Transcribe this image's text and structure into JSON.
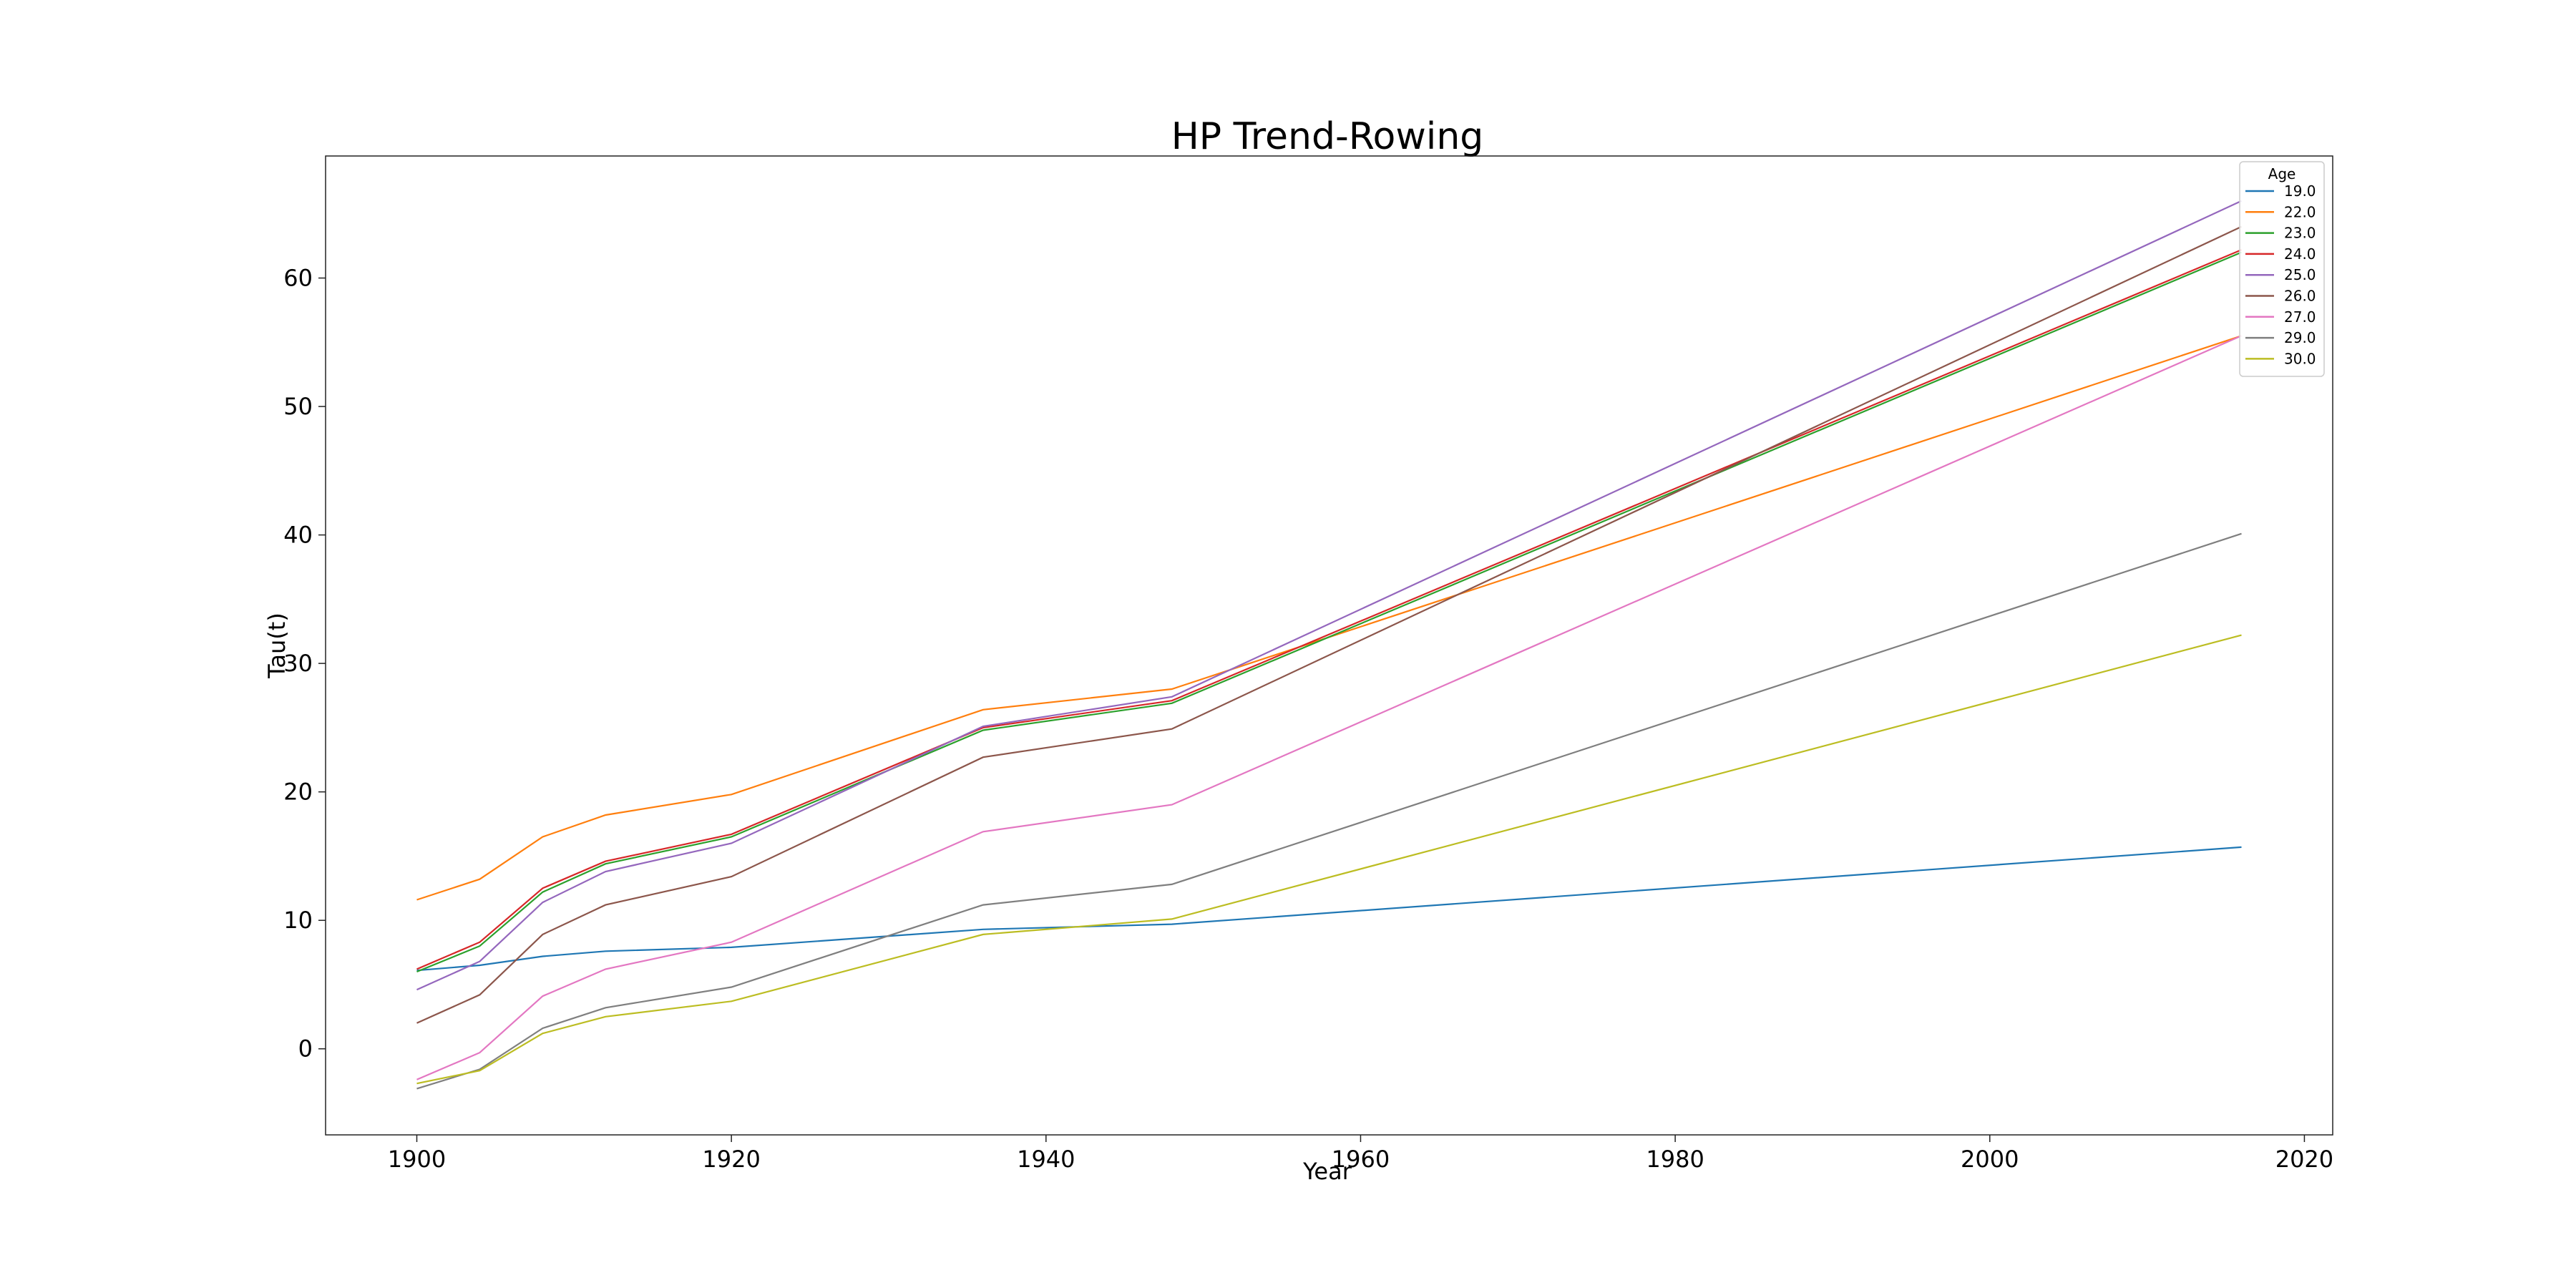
{
  "chart_data": {
    "type": "line",
    "title": "HP Trend-Rowing",
    "xlabel": "Year",
    "ylabel": "Tau(t)",
    "xlim": [
      1894.2,
      2021.8
    ],
    "ylim": [
      -6.7,
      69.5
    ],
    "xticks": [
      1900,
      1920,
      1940,
      1960,
      1980,
      2000,
      2020
    ],
    "yticks": [
      0,
      10,
      20,
      30,
      40,
      50,
      60
    ],
    "grid": false,
    "legend": {
      "title": "Age",
      "placement": "top-right"
    },
    "x": [
      1900,
      1904,
      1908,
      1912,
      1920,
      1936,
      1948,
      2016
    ],
    "series": [
      {
        "name": "19.0",
        "color": "#1f77b4",
        "values": [
          6.1,
          6.5,
          7.2,
          7.6,
          7.9,
          9.3,
          9.7,
          15.7
        ]
      },
      {
        "name": "22.0",
        "color": "#ff7f0e",
        "values": [
          11.6,
          13.2,
          16.5,
          18.2,
          19.8,
          26.4,
          28.0,
          55.5
        ]
      },
      {
        "name": "23.0",
        "color": "#2ca02c",
        "values": [
          6.0,
          8.0,
          12.2,
          14.4,
          16.5,
          24.8,
          26.9,
          62.0
        ]
      },
      {
        "name": "24.0",
        "color": "#d62728",
        "values": [
          6.2,
          8.3,
          12.5,
          14.6,
          16.7,
          25.0,
          27.1,
          62.2
        ]
      },
      {
        "name": "25.0",
        "color": "#9467bd",
        "values": [
          4.6,
          6.8,
          11.4,
          13.8,
          16.0,
          25.1,
          27.4,
          66.0
        ]
      },
      {
        "name": "26.0",
        "color": "#8c564b",
        "values": [
          2.0,
          4.2,
          8.9,
          11.2,
          13.4,
          22.7,
          24.9,
          64.0
        ]
      },
      {
        "name": "27.0",
        "color": "#e377c2",
        "values": [
          -2.4,
          -0.3,
          4.1,
          6.2,
          8.3,
          16.9,
          19.0,
          55.5
        ]
      },
      {
        "name": "29.0",
        "color": "#7f7f7f",
        "values": [
          -3.1,
          -1.6,
          1.6,
          3.2,
          4.8,
          11.2,
          12.8,
          40.1
        ]
      },
      {
        "name": "30.0",
        "color": "#bcbd22",
        "values": [
          -2.7,
          -1.7,
          1.2,
          2.5,
          3.7,
          8.9,
          10.1,
          32.2
        ]
      }
    ]
  }
}
